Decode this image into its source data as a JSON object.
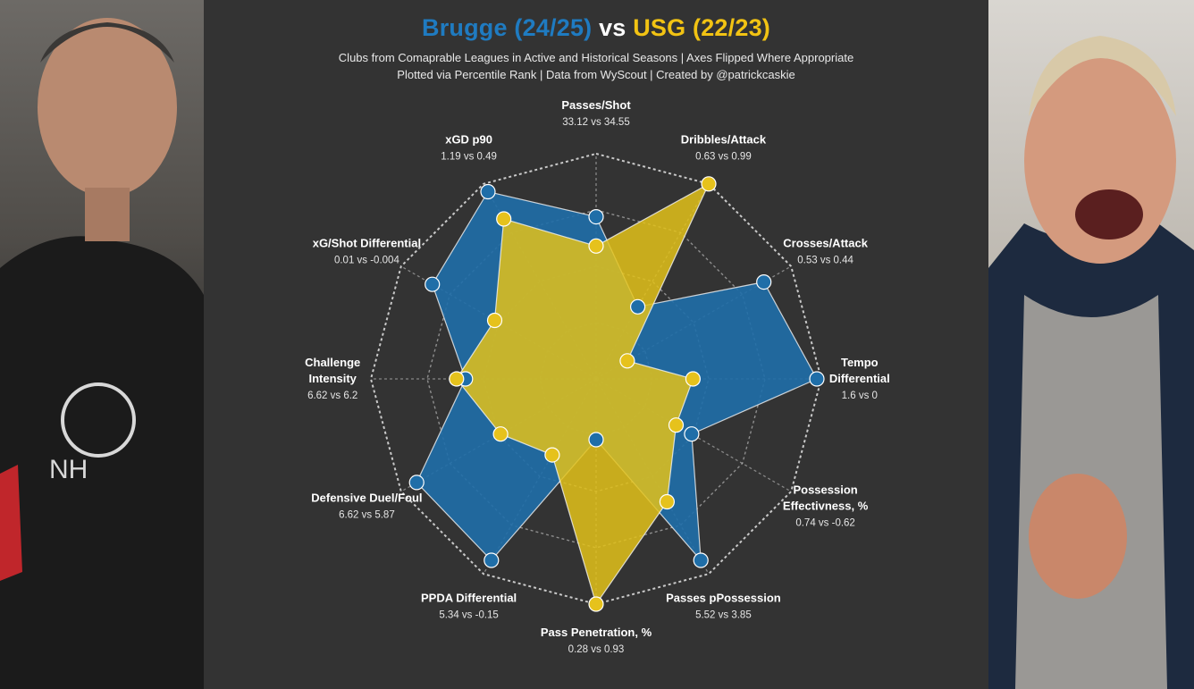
{
  "title": {
    "team_a": "Brugge (24/25)",
    "vs": "vs",
    "team_b": "USG (22/23)"
  },
  "subtitle": {
    "line1": "Clubs from Comaprable Leagues in Active and Historical Seasons | Axes Flipped Where Appropriate",
    "line2": "Plotted via Percentile Rank | Data from WyScout | Created by @patrickcaskie"
  },
  "colors": {
    "brugge": "#1f6ea8",
    "usg": "#e3c21a",
    "background": "#333333"
  },
  "photos": {
    "left": "brugge-manager-photo",
    "right": "usg-manager-photo"
  },
  "chart_data": {
    "type": "radar",
    "scale": "percentile rank",
    "range": [
      0,
      100
    ],
    "grid": true,
    "axes": [
      {
        "name": "Passes/Shot",
        "values": "33.12 vs 34.55",
        "lines": [
          "Passes/Shot"
        ]
      },
      {
        "name": "Dribbles/Attack",
        "values": "0.63 vs 0.99",
        "lines": [
          "Dribbles/Attack"
        ]
      },
      {
        "name": "Crosses/Attack",
        "values": "0.53 vs 0.44",
        "lines": [
          "Crosses/Attack"
        ]
      },
      {
        "name": "Tempo Differential",
        "values": "1.6 vs 0",
        "lines": [
          "Tempo",
          "Differential"
        ]
      },
      {
        "name": "Possession Effectivness, %",
        "values": "0.74 vs -0.62",
        "lines": [
          "Possession",
          "Effectivness, %"
        ]
      },
      {
        "name": "Passes pPossession",
        "values": "5.52 vs 3.85",
        "lines": [
          "Passes pPossession"
        ]
      },
      {
        "name": "Pass Penetration, %",
        "values": "0.28 vs 0.93",
        "lines": [
          "Pass Penetration, %"
        ]
      },
      {
        "name": "PPDA Differential",
        "values": "5.34 vs -0.15",
        "lines": [
          "PPDA Differential"
        ]
      },
      {
        "name": "Defensive Duel/Foul",
        "values": "6.62 vs 5.87",
        "lines": [
          "Defensive Duel/Foul"
        ]
      },
      {
        "name": "Challenge Intensity",
        "values": "6.62 vs 6.2",
        "lines": [
          "Challenge",
          "Intensity"
        ]
      },
      {
        "name": "xG/Shot Differential",
        "values": "0.01 vs -0.004",
        "lines": [
          "xG/Shot Differential"
        ]
      },
      {
        "name": "xGD p90",
        "values": "1.19 vs 0.49",
        "lines": [
          "xGD p90"
        ]
      }
    ],
    "series": [
      {
        "name": "Brugge (24/25)",
        "color": "#1f6ea8",
        "percentiles": [
          72,
          37,
          86,
          98,
          49,
          93,
          27,
          93,
          92,
          58,
          84,
          96
        ]
      },
      {
        "name": "USG (22/23)",
        "color": "#e3c21a",
        "percentiles": [
          59,
          100,
          16,
          43,
          41,
          63,
          100,
          39,
          49,
          62,
          52,
          82
        ]
      }
    ]
  }
}
